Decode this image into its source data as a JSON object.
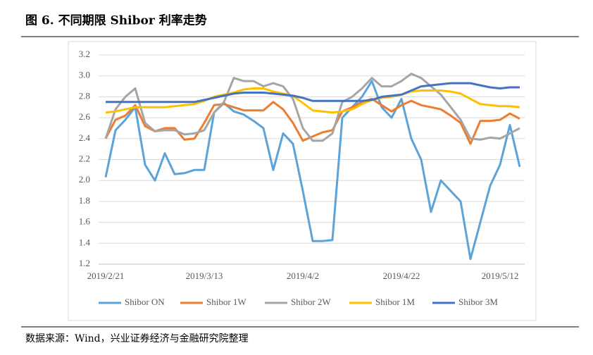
{
  "header": {
    "title": "图 6. 不同期限 Shibor 利率走势"
  },
  "footer": {
    "source": "数据来源：Wind，兴业证券经济与金融研究院整理"
  },
  "chart_data": {
    "type": "line",
    "categories": [
      "2019/2/21",
      null,
      null,
      null,
      null,
      null,
      null,
      null,
      null,
      null,
      "2019/3/13",
      null,
      null,
      null,
      null,
      null,
      null,
      null,
      null,
      null,
      "2019/4/2",
      null,
      null,
      null,
      null,
      null,
      null,
      null,
      null,
      null,
      "2019/4/22",
      null,
      null,
      null,
      null,
      null,
      null,
      null,
      null,
      null,
      "2019/5/12",
      null,
      null
    ],
    "series": [
      {
        "name": "Shibor ON",
        "color": "#5ba3d9",
        "values": [
          2.03,
          2.48,
          2.58,
          2.7,
          2.15,
          2.0,
          2.26,
          2.06,
          2.07,
          2.1,
          2.1,
          2.65,
          2.74,
          2.66,
          2.63,
          2.57,
          2.5,
          2.1,
          2.45,
          2.35,
          1.9,
          1.42,
          1.42,
          1.43,
          2.6,
          2.7,
          2.8,
          2.95,
          2.7,
          2.6,
          2.78,
          2.4,
          2.2,
          1.7,
          2.0,
          1.9,
          1.8,
          1.25,
          1.6,
          1.95,
          2.15,
          2.53,
          2.13
        ]
      },
      {
        "name": "Shibor 1W",
        "color": "#ed7d31",
        "values": [
          2.4,
          2.58,
          2.62,
          2.72,
          2.52,
          2.47,
          2.5,
          2.5,
          2.39,
          2.4,
          2.55,
          2.72,
          2.73,
          2.7,
          2.67,
          2.67,
          2.67,
          2.75,
          2.68,
          2.55,
          2.38,
          2.42,
          2.46,
          2.48,
          2.66,
          2.7,
          2.75,
          2.78,
          2.72,
          2.66,
          2.72,
          2.76,
          2.72,
          2.7,
          2.68,
          2.62,
          2.55,
          2.35,
          2.57,
          2.57,
          2.58,
          2.64,
          2.59
        ]
      },
      {
        "name": "Shibor 2W",
        "color": "#a5a5a5",
        "values": [
          2.4,
          2.68,
          2.8,
          2.88,
          2.55,
          2.47,
          2.48,
          2.48,
          2.44,
          2.45,
          2.48,
          2.65,
          2.75,
          2.98,
          2.95,
          2.95,
          2.9,
          2.93,
          2.9,
          2.78,
          2.5,
          2.38,
          2.38,
          2.45,
          2.75,
          2.8,
          2.88,
          2.98,
          2.9,
          2.9,
          2.95,
          3.02,
          2.98,
          2.9,
          2.82,
          2.7,
          2.58,
          2.4,
          2.39,
          2.41,
          2.4,
          2.45,
          2.5
        ]
      },
      {
        "name": "Shibor 1M",
        "color": "#ffc000",
        "values": [
          2.65,
          2.66,
          2.68,
          2.7,
          2.7,
          2.7,
          2.7,
          2.71,
          2.72,
          2.73,
          2.76,
          2.8,
          2.82,
          2.84,
          2.87,
          2.88,
          2.88,
          2.85,
          2.83,
          2.81,
          2.74,
          2.67,
          2.66,
          2.65,
          2.66,
          2.68,
          2.73,
          2.77,
          2.79,
          2.8,
          2.82,
          2.85,
          2.86,
          2.86,
          2.86,
          2.85,
          2.83,
          2.78,
          2.73,
          2.72,
          2.71,
          2.71,
          2.7
        ]
      },
      {
        "name": "Shibor 3M",
        "color": "#4472c4",
        "values": [
          2.75,
          2.75,
          2.75,
          2.75,
          2.75,
          2.75,
          2.75,
          2.75,
          2.75,
          2.75,
          2.77,
          2.79,
          2.81,
          2.83,
          2.84,
          2.84,
          2.84,
          2.83,
          2.82,
          2.81,
          2.79,
          2.76,
          2.76,
          2.76,
          2.76,
          2.76,
          2.76,
          2.77,
          2.8,
          2.81,
          2.82,
          2.86,
          2.9,
          2.91,
          2.92,
          2.93,
          2.93,
          2.93,
          2.91,
          2.89,
          2.88,
          2.89,
          2.89
        ]
      }
    ],
    "ylim": [
      1.2,
      3.2
    ],
    "yticks": [
      1.2,
      1.4,
      1.6,
      1.8,
      {
        "value": 2,
        "label": "2.0"
      },
      2.2,
      2.4,
      2.6,
      2.8,
      {
        "value": 3,
        "label": "3.0"
      },
      3.2
    ],
    "grid": true,
    "legend": "bottom"
  }
}
